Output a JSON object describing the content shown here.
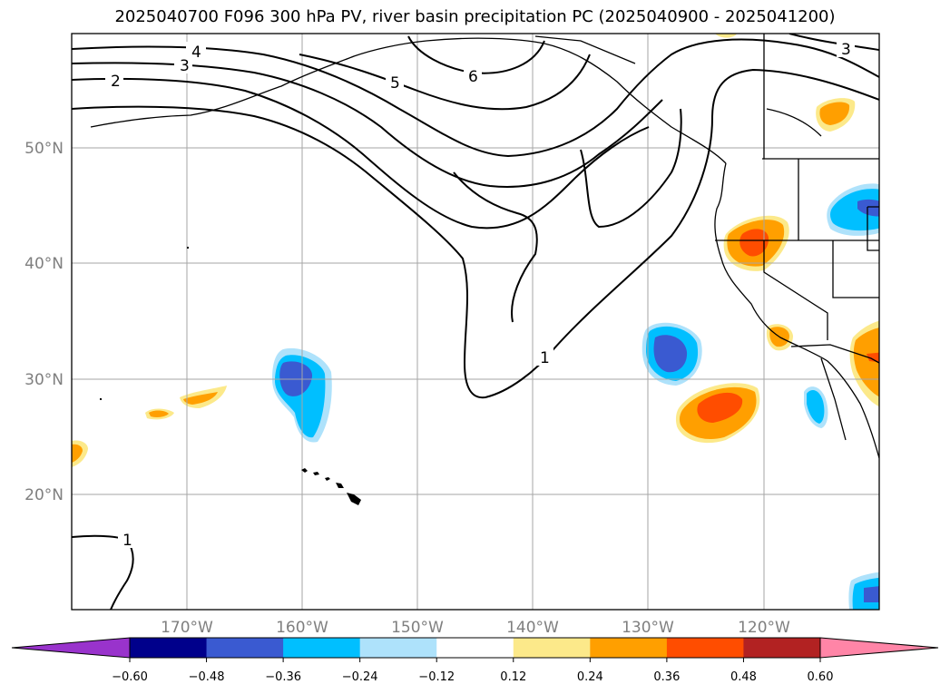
{
  "title": "2025040700 F096 300 hPa PV, river basin precipitation PC (2025040900 - 2025041200)",
  "map": {
    "lat_labels": [
      "50°N",
      "40°N",
      "30°N",
      "20°N"
    ],
    "lon_labels": [
      "170°W",
      "160°W",
      "150°W",
      "140°W",
      "130°W",
      "120°W"
    ],
    "contour_labels": [
      "4",
      "3",
      "2",
      "5",
      "6",
      "1",
      "3",
      "1"
    ],
    "colors": {
      "coast": "#000000",
      "grid": "#a6a6a6",
      "neg_strong": "#3a5ad1",
      "neg_mid": "#00bfff",
      "neg_weak": "#aee2fb",
      "pos_weak": "#fce98a",
      "pos_mid": "#ff9f00",
      "pos_strong": "#ff4d00"
    }
  },
  "colorbar": {
    "ticks": [
      "−0.60",
      "−0.48",
      "−0.36",
      "−0.24",
      "−0.12",
      "0.12",
      "0.24",
      "0.36",
      "0.48",
      "0.60"
    ],
    "colors": [
      "#9933cc",
      "#00008b",
      "#3a5ad1",
      "#00bfff",
      "#aee2fb",
      "#ffffff",
      "#fce98a",
      "#ff9f00",
      "#ff4d00",
      "#b22222",
      "#ff85a7"
    ]
  }
}
